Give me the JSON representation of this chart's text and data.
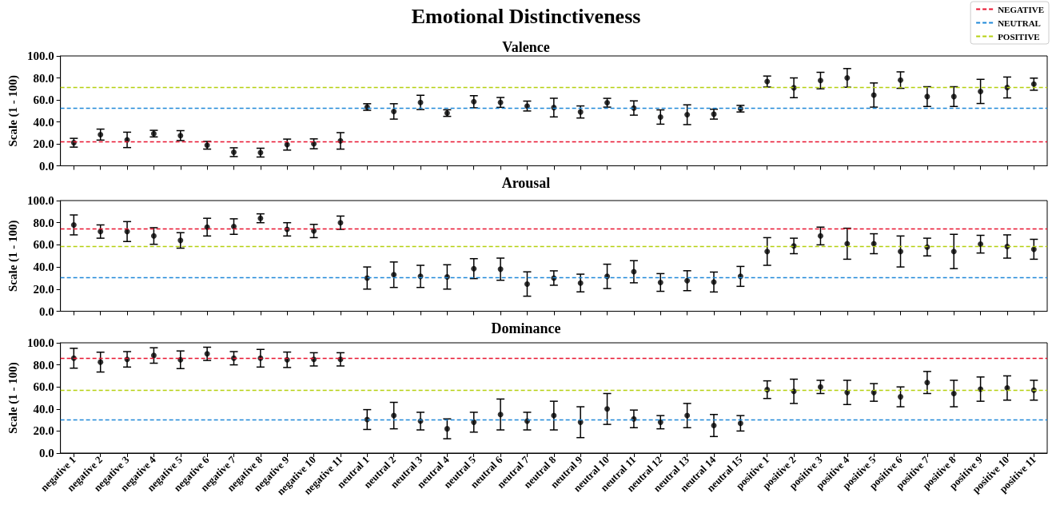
{
  "chart_data": [
    {
      "type": "scatter",
      "title": "Emotional Distinctiveness",
      "subtitle": "Valence",
      "ylabel": "Scale (1 - 100)",
      "categories": [
        null,
        null,
        null,
        null,
        null,
        null,
        null,
        null,
        null,
        null,
        null,
        null,
        null,
        null,
        null,
        null,
        null,
        null,
        null,
        null,
        null,
        null,
        null,
        null,
        null,
        null,
        null,
        null,
        null,
        null,
        null,
        null,
        null,
        null,
        null,
        null,
        null
      ],
      "series": [
        {
          "color": "#000000",
          "values": [
            21,
            28.4,
            23.6,
            29.3,
            27.5,
            18.7,
            12.4,
            12,
            19.3,
            20,
            22.7,
            53.5,
            49.5,
            57.7,
            48,
            58.3,
            57.7,
            54.4,
            53,
            49,
            57.4,
            52.6,
            44.4,
            46.5,
            47,
            52,
            76.7,
            71,
            77.6,
            80,
            64.4,
            78,
            63,
            63,
            67.7,
            71.3,
            74.3
          ],
          "errors": [
            4,
            5,
            7,
            3,
            4.5,
            3.5,
            4,
            4,
            5,
            4.5,
            7.5,
            3,
            7,
            6.5,
            3,
            5.5,
            4.5,
            4.5,
            8.5,
            5.5,
            4,
            6.5,
            6.5,
            9,
            4.5,
            3,
            5,
            9,
            7.5,
            8.5,
            11,
            7.5,
            9,
            9,
            11,
            9.5,
            5.5
          ]
        }
      ],
      "ref_lines": [
        {
          "axis": "y",
          "value": 22,
          "label": "NEGATIVE",
          "color": "#e8132e",
          "line_style": "dashed"
        },
        {
          "axis": "y",
          "value": 52.3,
          "label": "NEUTRAL",
          "color": "#1f88d8",
          "line_style": "dashed"
        },
        {
          "axis": "y",
          "value": 71.3,
          "label": "POSITIVE",
          "color": "#b5d00f",
          "line_style": "dashed"
        }
      ],
      "ylim": [
        0,
        100
      ],
      "yticks": [
        {
          "value": 0,
          "label": "0.0"
        },
        {
          "value": 20,
          "label": "20.0"
        },
        {
          "value": 40,
          "label": "40.0"
        },
        {
          "value": 60,
          "label": "60.0"
        },
        {
          "value": 80,
          "label": "80.0"
        },
        {
          "value": 100,
          "label": "100.0"
        }
      ],
      "marker": "circle",
      "grid": false,
      "legend": "top right",
      "tick_labels": "y"
    },
    {
      "type": "scatter",
      "title": "Arousal",
      "ylabel": "Scale (1 - 100)",
      "categories": [
        null,
        null,
        null,
        null,
        null,
        null,
        null,
        null,
        null,
        null,
        null,
        null,
        null,
        null,
        null,
        null,
        null,
        null,
        null,
        null,
        null,
        null,
        null,
        null,
        null,
        null,
        null,
        null,
        null,
        null,
        null,
        null,
        null,
        null,
        null,
        null,
        null
      ],
      "series": [
        {
          "color": "#000000",
          "values": [
            78,
            72,
            72,
            68,
            64,
            76,
            76.5,
            84,
            74,
            72.5,
            80,
            30,
            33,
            31.5,
            31,
            38.5,
            38,
            24.6,
            30,
            25.5,
            31.5,
            35.7,
            26,
            27.6,
            26.4,
            31.5,
            54,
            59,
            68,
            61,
            61,
            54,
            58,
            54,
            60.6,
            58.5,
            56
          ],
          "errors": [
            9,
            6,
            9,
            7.5,
            7,
            8,
            7,
            4,
            6,
            6,
            6,
            10,
            11.5,
            10,
            11,
            9,
            10,
            11,
            6.5,
            8,
            11,
            10,
            8,
            9,
            9,
            9,
            12.5,
            7,
            8,
            14,
            9,
            14,
            8,
            15.5,
            8,
            10.5,
            9
          ]
        }
      ],
      "ref_lines": [
        {
          "axis": "y",
          "value": 74.5,
          "color": "#e8132e",
          "line_style": "dashed"
        },
        {
          "axis": "y",
          "value": 30.6,
          "color": "#1f88d8",
          "line_style": "dashed"
        },
        {
          "axis": "y",
          "value": 58.5,
          "color": "#b5d00f",
          "line_style": "dashed"
        }
      ],
      "ylim": [
        0,
        100
      ],
      "yticks": [
        {
          "value": 0,
          "label": "0.0"
        },
        {
          "value": 20,
          "label": "20.0"
        },
        {
          "value": 40,
          "label": "40.0"
        },
        {
          "value": 60,
          "label": "60.0"
        },
        {
          "value": 80,
          "label": "80.0"
        },
        {
          "value": 100,
          "label": "100.0"
        }
      ],
      "marker": "circle",
      "grid": false,
      "tick_labels": "y"
    },
    {
      "type": "scatter",
      "title": "Dominance",
      "ylabel": "Scale (1 - 100)",
      "categories": [
        "negative 1",
        "negative 2",
        "negative 3",
        "negative 4",
        "negative 5",
        "negative 6",
        "negative 7",
        "negative 8",
        "negative 9",
        "negative 10",
        "negative 11",
        "neutral 1",
        "neutral 2",
        "neutral 3",
        "neutral 4",
        "neutral 5",
        "neutral 6",
        "neutral 7",
        "neutral 8",
        "neutral 9",
        "neutral 10",
        "neutral 11",
        "neutral 12",
        "neutral 13",
        "neutral 14",
        "neutral 15",
        "positive 1",
        "positive 2",
        "positive 3",
        "positive 4",
        "positive 5",
        "positive 6",
        "positive 7",
        "positive 8",
        "positive 9",
        "positive 10",
        "positive 11"
      ],
      "series": [
        {
          "color": "#000000",
          "values": [
            86,
            82.5,
            85,
            88.5,
            84.6,
            90,
            86,
            86,
            84.6,
            85,
            85,
            30.4,
            34,
            29,
            22,
            28,
            35,
            29,
            34,
            28,
            40,
            31,
            28,
            34,
            25,
            27,
            57.5,
            56,
            60,
            55,
            55,
            51,
            64,
            54,
            58,
            59,
            57
          ],
          "errors": [
            9,
            9,
            7,
            7,
            8,
            6,
            6,
            8,
            7,
            6,
            6,
            9,
            12,
            8,
            9,
            9,
            14,
            8,
            13,
            14,
            14,
            8,
            6,
            11,
            10,
            7,
            8,
            11,
            6,
            11,
            8,
            9,
            10,
            12,
            11,
            11,
            9
          ]
        }
      ],
      "ref_lines": [
        {
          "axis": "y",
          "value": 86,
          "color": "#e8132e",
          "line_style": "dashed"
        },
        {
          "axis": "y",
          "value": 30,
          "color": "#1f88d8",
          "line_style": "dashed"
        },
        {
          "axis": "y",
          "value": 57,
          "color": "#b5d00f",
          "line_style": "dashed"
        }
      ],
      "ylim": [
        0,
        100
      ],
      "yticks": [
        {
          "value": 0,
          "label": "0.0"
        },
        {
          "value": 20,
          "label": "20.0"
        },
        {
          "value": 40,
          "label": "40.0"
        },
        {
          "value": 60,
          "label": "60.0"
        },
        {
          "value": 80,
          "label": "80.0"
        },
        {
          "value": 100,
          "label": "100.0"
        }
      ],
      "marker": "circle",
      "grid": false
    }
  ]
}
